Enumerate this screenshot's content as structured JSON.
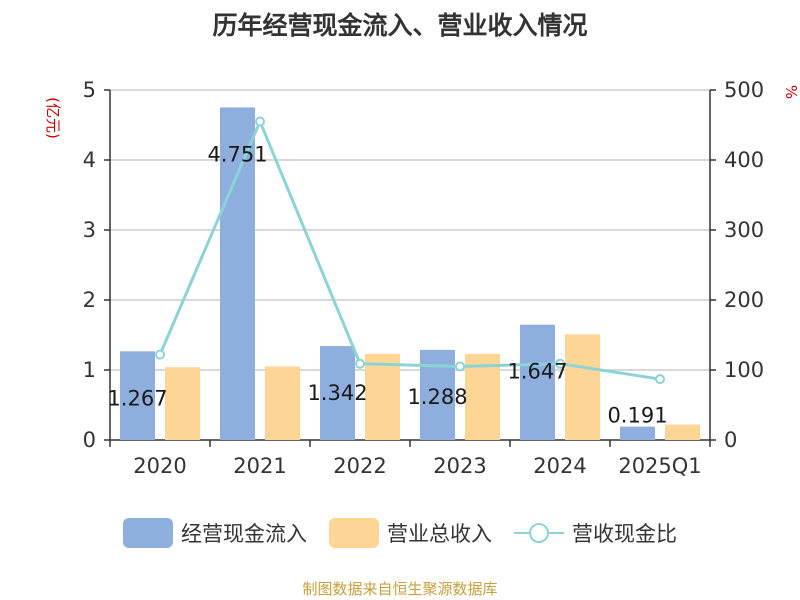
{
  "chart_data": {
    "type": "bar",
    "title": "历年经营现金流入、营业收入情况",
    "categories": [
      "2020",
      "2021",
      "2022",
      "2023",
      "2024",
      "2025Q1"
    ],
    "ylabel_left": "(亿元)",
    "ylabel_right": "%",
    "ylim_left": [
      0,
      5
    ],
    "ylim_right": [
      0,
      500
    ],
    "yticks_left": [
      "0",
      "1",
      "2",
      "3",
      "4",
      "5"
    ],
    "yticks_right": [
      "0",
      "100",
      "200",
      "300",
      "400",
      "500"
    ],
    "grid": true,
    "legend_position": "bottom",
    "series": [
      {
        "name": "经营现金流入",
        "kind": "bar",
        "axis": "left",
        "color": "#8eaedd",
        "values": [
          1.267,
          4.751,
          1.342,
          1.288,
          1.647,
          0.191
        ],
        "labels": [
          "1.267",
          "4.751",
          "1.342",
          "1.288",
          "1.647",
          "0.191"
        ]
      },
      {
        "name": "营业总收入",
        "kind": "bar",
        "axis": "left",
        "color": "#fdd696",
        "values": [
          1.04,
          1.05,
          1.23,
          1.23,
          1.51,
          0.22
        ]
      },
      {
        "name": "营收现金比",
        "kind": "line",
        "axis": "right",
        "color": "#8cd3d6",
        "values": [
          122,
          455,
          109,
          105,
          109,
          87
        ]
      }
    ]
  },
  "source": "制图数据来自恒生聚源数据库"
}
